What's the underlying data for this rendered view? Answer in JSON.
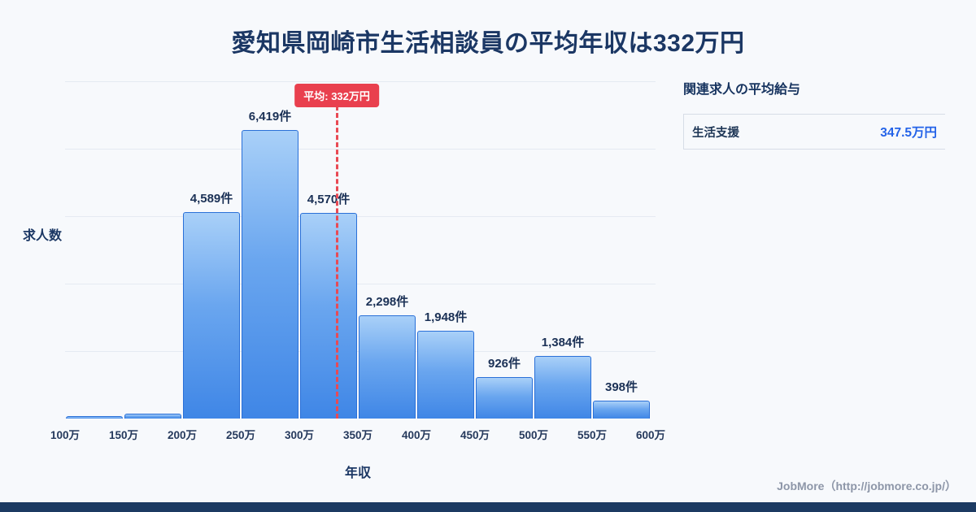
{
  "page": {
    "title": "愛知県岡崎市生活相談員の平均年収は332万円",
    "credit": "JobMore（http://jobmore.co.jp/）"
  },
  "chart_data": {
    "type": "bar",
    "title": "愛知県岡崎市生活相談員の平均年収は332万円",
    "xlabel": "年収",
    "ylabel": "求人数",
    "ylim": [
      0,
      7500
    ],
    "grid": true,
    "x_ticks": [
      "100万",
      "150万",
      "200万",
      "250万",
      "300万",
      "350万",
      "400万",
      "450万",
      "500万",
      "550万",
      "600万"
    ],
    "bins": [
      {
        "range": "100万-150万",
        "value": 50,
        "label": ""
      },
      {
        "range": "150万-200万",
        "value": 110,
        "label": ""
      },
      {
        "range": "200万-250万",
        "value": 4589,
        "label": "4,589件"
      },
      {
        "range": "250万-300万",
        "value": 6419,
        "label": "6,419件"
      },
      {
        "range": "300万-350万",
        "value": 4570,
        "label": "4,570件"
      },
      {
        "range": "350万-400万",
        "value": 2298,
        "label": "2,298件"
      },
      {
        "range": "400万-450万",
        "value": 1948,
        "label": "1,948件"
      },
      {
        "range": "450万-500万",
        "value": 926,
        "label": "926件"
      },
      {
        "range": "500万-550万",
        "value": 1384,
        "label": "1,384件"
      },
      {
        "range": "550万-600万",
        "value": 398,
        "label": "398件"
      }
    ],
    "average": {
      "value": 332,
      "label": "平均: 332万円"
    },
    "colors": {
      "bar_top": "#a9d0f8",
      "bar_bottom": "#3f86e6",
      "bar_border": "#2a70d8",
      "average_line": "#e94a54",
      "accent_blue": "#2463e8",
      "navy": "#1b3764"
    }
  },
  "side_panel": {
    "heading": "関連求人の平均給与",
    "items": [
      {
        "label": "生活支援",
        "value": "347.5万円"
      }
    ]
  }
}
